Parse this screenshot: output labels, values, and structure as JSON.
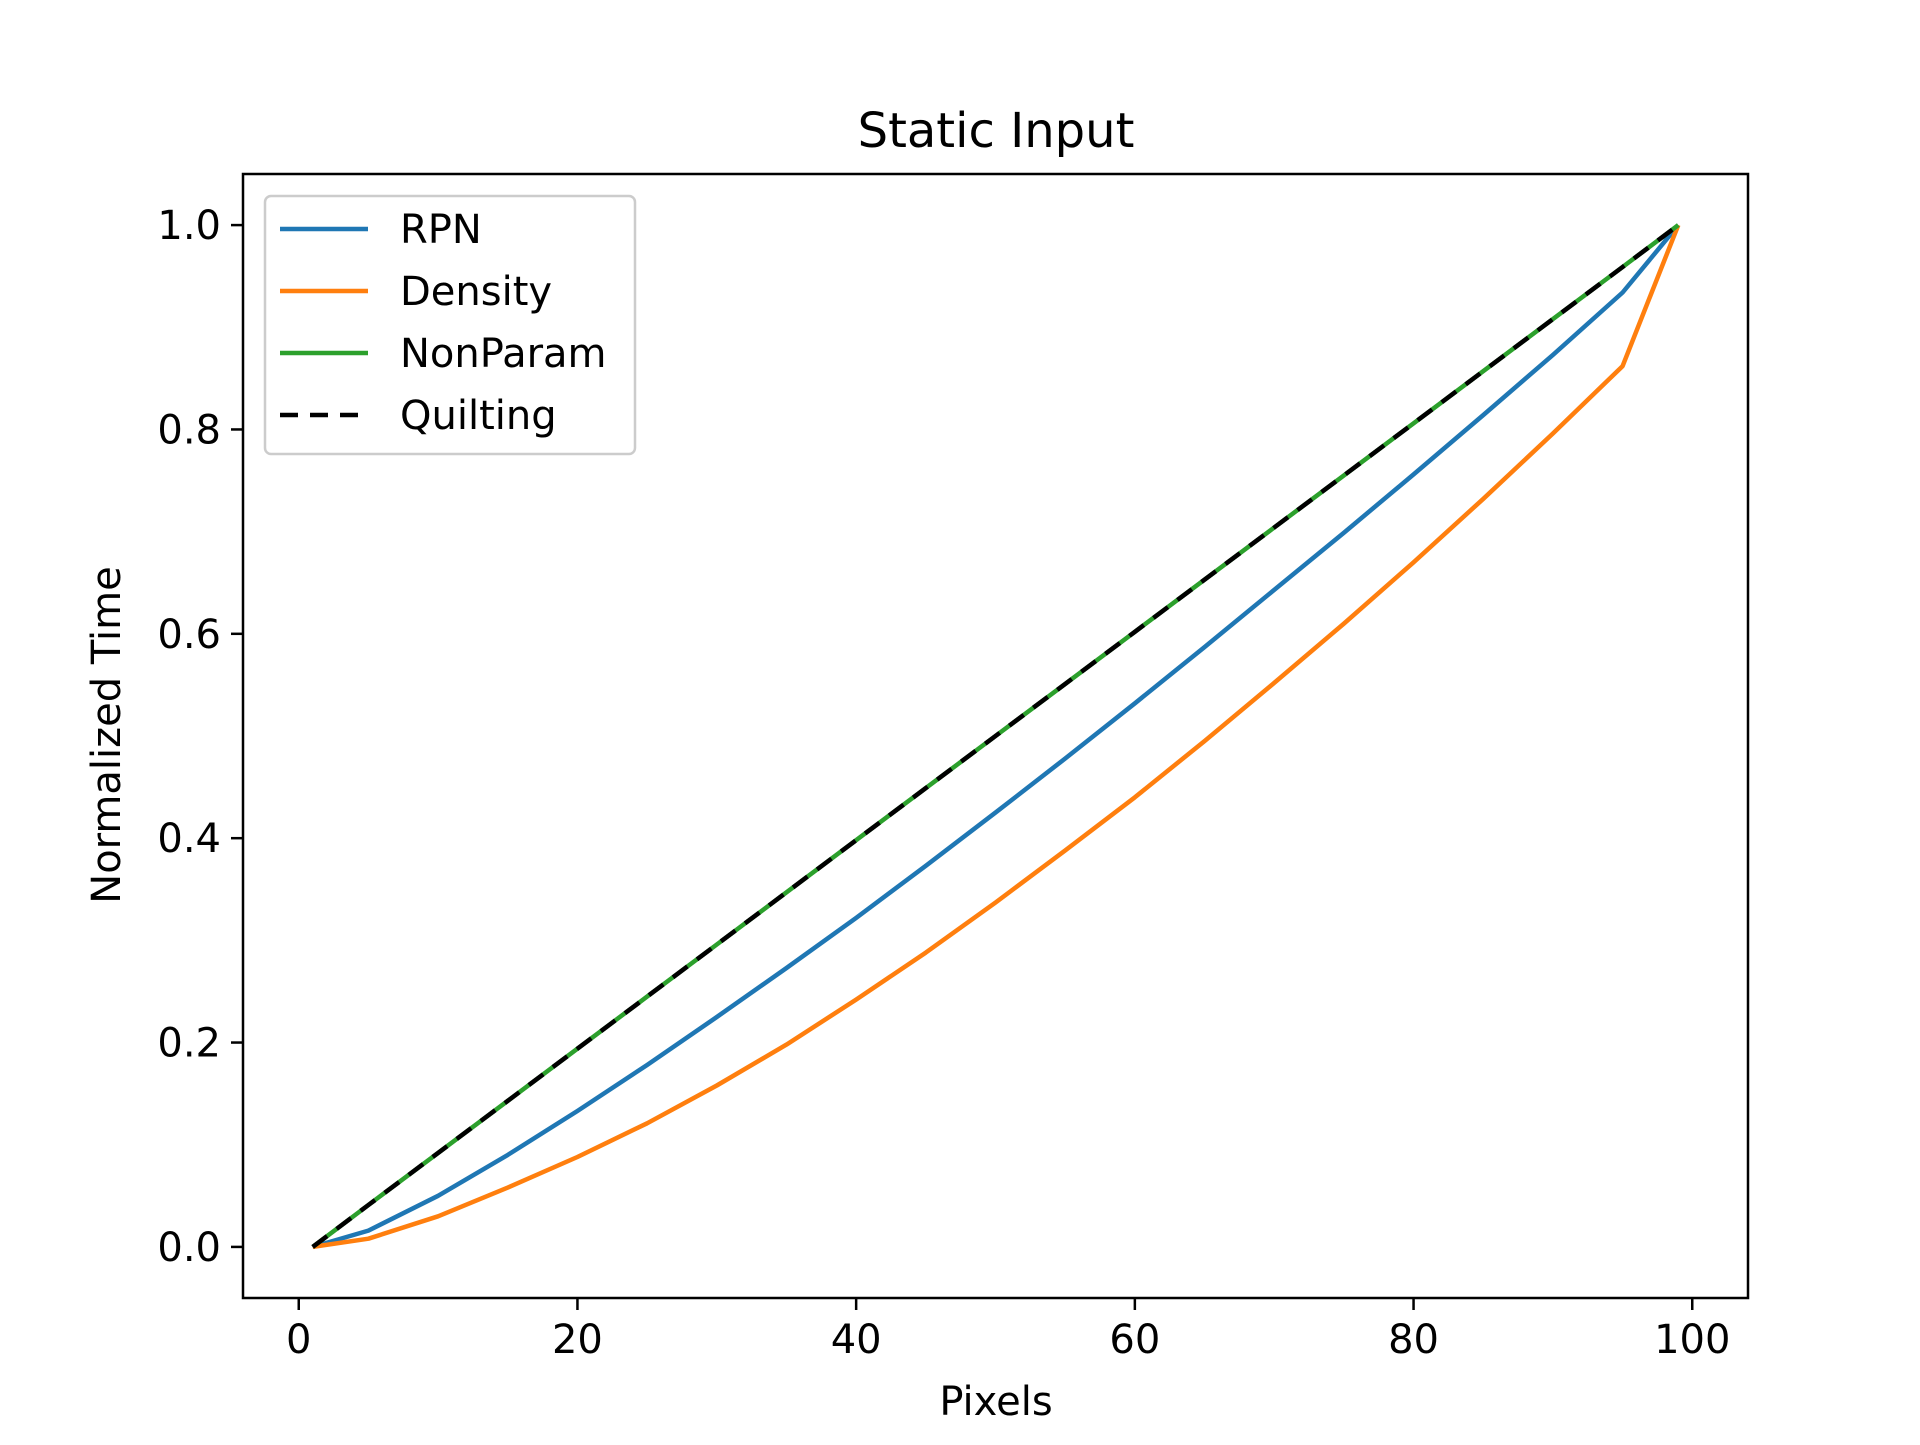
{
  "colors": {
    "RPN": "#1f77b4",
    "Density": "#ff7f0e",
    "NonParam": "#2ca02c",
    "Quilting": "#000000"
  },
  "chart_data": {
    "type": "line",
    "title": "Static Input",
    "xlabel": "Pixels",
    "ylabel": "Normalized Time",
    "xlim": [
      -4,
      104
    ],
    "ylim": [
      -0.05,
      1.05
    ],
    "xticks": [
      0,
      20,
      40,
      60,
      80,
      100
    ],
    "xtick_labels": [
      "0",
      "20",
      "40",
      "60",
      "80",
      "100"
    ],
    "yticks": [
      0.0,
      0.2,
      0.4,
      0.6,
      0.8,
      1.0
    ],
    "ytick_labels": [
      "0.0",
      "0.2",
      "0.4",
      "0.6",
      "0.8",
      "1.0"
    ],
    "grid": false,
    "legend_position": "upper-left",
    "x": [
      1,
      5,
      10,
      15,
      20,
      25,
      30,
      35,
      40,
      45,
      50,
      55,
      60,
      65,
      70,
      75,
      80,
      85,
      90,
      95,
      99
    ],
    "series": [
      {
        "name": "RPN",
        "style": "solid",
        "values": [
          0.0,
          0.016,
          0.05,
          0.09,
          0.133,
          0.178,
          0.225,
          0.273,
          0.322,
          0.373,
          0.425,
          0.478,
          0.532,
          0.587,
          0.643,
          0.699,
          0.756,
          0.814,
          0.873,
          0.934,
          1.0
        ]
      },
      {
        "name": "Density",
        "style": "solid",
        "values": [
          0.0,
          0.008,
          0.03,
          0.058,
          0.088,
          0.121,
          0.158,
          0.198,
          0.242,
          0.288,
          0.337,
          0.388,
          0.44,
          0.495,
          0.552,
          0.61,
          0.67,
          0.732,
          0.796,
          0.862,
          1.0
        ]
      },
      {
        "name": "NonParam",
        "style": "solid",
        "values": [
          0.0,
          0.041,
          0.092,
          0.143,
          0.194,
          0.245,
          0.296,
          0.347,
          0.398,
          0.449,
          0.5,
          0.551,
          0.602,
          0.653,
          0.704,
          0.755,
          0.806,
          0.857,
          0.908,
          0.959,
          1.0
        ]
      },
      {
        "name": "Quilting",
        "style": "dashed",
        "values": [
          0.0,
          0.041,
          0.092,
          0.143,
          0.194,
          0.245,
          0.296,
          0.347,
          0.398,
          0.449,
          0.5,
          0.551,
          0.602,
          0.653,
          0.704,
          0.755,
          0.806,
          0.857,
          0.908,
          0.959,
          1.0
        ]
      }
    ]
  }
}
